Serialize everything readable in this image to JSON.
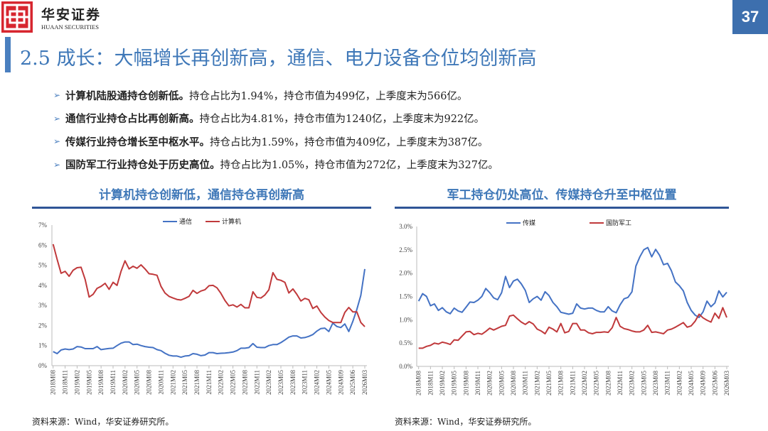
{
  "header": {
    "brand_cn": "华安证券",
    "brand_en": "HUAAN SECURITIES",
    "page_number": "37",
    "title": "2.5 成长：大幅增长再创新高，通信、电力设备仓位均创新高"
  },
  "bullets": [
    {
      "bold": "计算机陆股通持仓创新低。",
      "text": "持仓占比为1.94%，持仓市值为499亿，上季度末为566亿。"
    },
    {
      "bold": "通信行业持仓占比再创新高。",
      "text": "持仓占比为4.81%，持仓市值为1240亿，上季度末为922亿。"
    },
    {
      "bold": "传媒行业持仓增长至中枢水平。",
      "text": "持仓占比为1.59%，持仓市值为409亿，上季度末为387亿。"
    },
    {
      "bold": "国防军工行业持仓处于历史高位。",
      "text": "持仓占比为1.05%，持仓市值为272亿，上季度末为327亿。"
    }
  ],
  "colors": {
    "accent": "#3f78b8",
    "blue_series": "#4472c4",
    "red_series": "#c0393b",
    "logo": "#d7262f"
  },
  "chart_data": [
    {
      "type": "line",
      "title": "计算机持仓创新低，通信持仓再创新高",
      "source": "资料来源：Wind，华安证券研究所。",
      "ylim": [
        0,
        7
      ],
      "yticks": [
        "0%",
        "1%",
        "2%",
        "3%",
        "4%",
        "5%",
        "6%",
        "7%"
      ],
      "legend": "top",
      "x_tick_labels": [
        "2018M08",
        "2018M11",
        "2019M02",
        "2019M05",
        "2019M08",
        "2019M11",
        "2020M02",
        "2020M05",
        "2020M08",
        "2020M11",
        "2021M02",
        "2021M05",
        "2021M08",
        "2021M11",
        "2022M02",
        "2022M05",
        "2022M08",
        "2022M11",
        "2023M02",
        "2023M05",
        "2023M08",
        "2023M11",
        "2024M02",
        "2024M05",
        "2024M09",
        "2025M06",
        "2026M03"
      ],
      "series": [
        {
          "name": "通信",
          "color": "#4472c4",
          "values": [
            0.7,
            0.6,
            0.78,
            0.83,
            0.8,
            0.83,
            0.95,
            0.93,
            0.85,
            0.85,
            0.85,
            0.95,
            0.8,
            0.83,
            0.86,
            0.87,
            1.0,
            1.12,
            1.18,
            1.18,
            1.05,
            1.07,
            1.0,
            0.95,
            0.92,
            0.9,
            0.8,
            0.75,
            0.62,
            0.52,
            0.48,
            0.48,
            0.42,
            0.48,
            0.5,
            0.6,
            0.57,
            0.5,
            0.53,
            0.65,
            0.65,
            0.6,
            0.62,
            0.63,
            0.65,
            0.68,
            0.75,
            0.87,
            0.87,
            0.9,
            1.1,
            0.92,
            0.9,
            0.9,
            1.0,
            1.05,
            1.05,
            1.15,
            1.28,
            1.42,
            1.48,
            1.48,
            1.38,
            1.4,
            1.46,
            1.55,
            1.72,
            1.85,
            1.87,
            1.7,
            2.12,
            1.95,
            1.9,
            2.08,
            1.7,
            2.2,
            2.8,
            3.5,
            4.81
          ]
        },
        {
          "name": "计算机",
          "color": "#c0393b",
          "values": [
            6.05,
            5.3,
            4.6,
            4.7,
            4.45,
            4.75,
            4.88,
            4.9,
            4.3,
            3.42,
            3.55,
            3.85,
            3.95,
            4.1,
            3.8,
            4.15,
            4.0,
            4.7,
            5.22,
            4.82,
            4.95,
            4.85,
            5.02,
            4.82,
            4.58,
            4.55,
            4.5,
            3.95,
            3.62,
            3.45,
            3.37,
            3.3,
            3.27,
            3.35,
            3.45,
            3.75,
            3.6,
            3.72,
            3.78,
            3.98,
            4.0,
            3.88,
            3.6,
            3.25,
            2.98,
            3.03,
            2.92,
            3.05,
            2.88,
            2.88,
            3.68,
            3.4,
            3.37,
            3.52,
            3.78,
            4.63,
            4.3,
            4.25,
            4.15,
            3.62,
            3.82,
            3.55,
            3.22,
            3.35,
            3.28,
            2.85,
            2.97,
            2.65,
            2.42,
            2.25,
            2.15,
            2.15,
            2.15,
            2.65,
            2.9,
            2.68,
            2.68,
            2.15,
            1.94
          ]
        }
      ]
    },
    {
      "type": "line",
      "title": "军工持仓仍处高位、传媒持仓升至中枢位置",
      "source": "资料来源：Wind，华安证券研究所。",
      "ylim": [
        0,
        3
      ],
      "yticks": [
        "0.0%",
        "0.5%",
        "1.0%",
        "1.5%",
        "2.0%",
        "2.5%",
        "3.0%"
      ],
      "legend": "top",
      "x_tick_labels": [
        "2018M08",
        "2018M11",
        "2019M02",
        "2019M05",
        "2019M08",
        "2019M11",
        "2020M02",
        "2020M05",
        "2020M08",
        "2020M11",
        "2021M02",
        "2021M05",
        "2021M08",
        "2021M11",
        "2022M02",
        "2022M05",
        "2022M08",
        "2022M11",
        "2023M02",
        "2023M05",
        "2023M08",
        "2023M11",
        "2024M02",
        "2024M05",
        "2024M09",
        "2025M06",
        "2026M03"
      ],
      "series": [
        {
          "name": "传媒",
          "color": "#4472c4",
          "values": [
            1.4,
            1.56,
            1.5,
            1.3,
            1.34,
            1.2,
            1.26,
            1.17,
            1.13,
            1.25,
            1.19,
            1.16,
            1.27,
            1.38,
            1.37,
            1.42,
            1.5,
            1.67,
            1.58,
            1.47,
            1.43,
            1.58,
            1.93,
            1.69,
            1.83,
            1.87,
            1.77,
            1.63,
            1.37,
            1.45,
            1.5,
            1.42,
            1.6,
            1.52,
            1.37,
            1.28,
            1.16,
            1.14,
            1.12,
            1.14,
            1.34,
            1.25,
            1.23,
            1.25,
            1.25,
            1.2,
            1.17,
            1.17,
            1.28,
            1.19,
            1.15,
            1.32,
            1.45,
            1.48,
            1.6,
            2.15,
            2.35,
            2.5,
            2.55,
            2.35,
            2.51,
            2.38,
            2.18,
            2.21,
            2.05,
            1.81,
            1.73,
            1.62,
            1.37,
            1.2,
            1.1,
            1.05,
            1.17,
            1.4,
            1.28,
            1.36,
            1.62,
            1.49,
            1.59
          ]
        },
        {
          "name": "国防军工",
          "color": "#c0393b",
          "values": [
            0.39,
            0.39,
            0.43,
            0.45,
            0.5,
            0.48,
            0.52,
            0.5,
            0.47,
            0.57,
            0.56,
            0.65,
            0.74,
            0.75,
            0.68,
            0.71,
            0.69,
            0.75,
            0.82,
            0.78,
            0.82,
            0.86,
            0.88,
            1.08,
            1.1,
            1.02,
            0.95,
            0.9,
            0.96,
            0.91,
            0.8,
            0.76,
            0.7,
            0.84,
            0.8,
            0.74,
            0.92,
            0.72,
            0.75,
            0.92,
            0.92,
            0.78,
            0.78,
            0.72,
            0.7,
            0.73,
            0.73,
            0.74,
            0.73,
            0.83,
            1.05,
            0.86,
            0.81,
            0.79,
            0.76,
            0.74,
            0.74,
            0.78,
            0.88,
            0.73,
            0.74,
            0.72,
            0.7,
            0.78,
            0.8,
            0.84,
            0.89,
            0.94,
            0.84,
            0.87,
            0.97,
            1.12,
            1.04,
            0.99,
            0.95,
            1.14,
            1.03,
            1.26,
            1.05
          ]
        }
      ]
    }
  ]
}
